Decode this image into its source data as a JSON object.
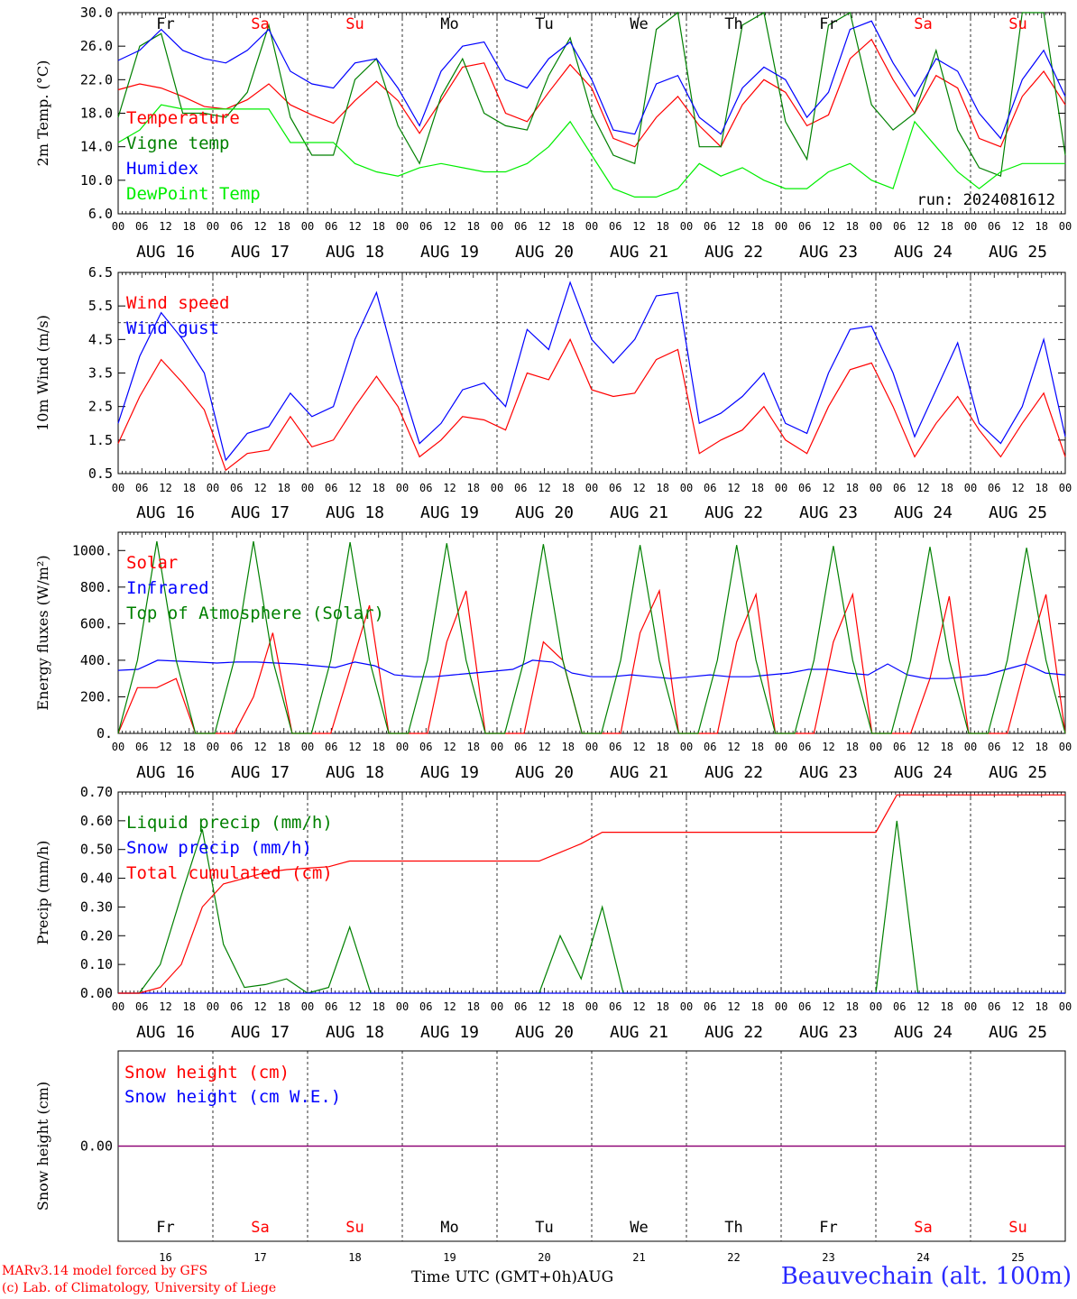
{
  "colors": {
    "temperature": "#ff0000",
    "vigne": "#008000",
    "humidex": "#0000ff",
    "dewpoint": "#00ee00",
    "axis": "#000000",
    "red": "#ff0000",
    "green": "#008000",
    "blue": "#0000ff",
    "purple": "#800080"
  },
  "days": {
    "weekday_labels": [
      "Fr",
      "Sa",
      "Su",
      "Mo",
      "Tu",
      "We",
      "Th",
      "Fr",
      "Sa",
      "Su"
    ],
    "weekend_flags": [
      false,
      true,
      true,
      false,
      false,
      false,
      false,
      false,
      true,
      true
    ],
    "date_labels": [
      "AUG 16",
      "AUG 17",
      "AUG 18",
      "AUG 19",
      "AUG 20",
      "AUG 21",
      "AUG 22",
      "AUG 23",
      "AUG 24",
      "AUG 25"
    ],
    "day_numbers": [
      "16",
      "17",
      "18",
      "19",
      "20",
      "21",
      "22",
      "23",
      "24",
      "25"
    ],
    "hour_ticks": [
      "00",
      "06",
      "12",
      "18"
    ],
    "final_tick": "00"
  },
  "footer": {
    "model_line": "MARv3.14 model forced by GFS",
    "credit_line": "(c) Lab. of Climatology, University of Liege",
    "time_axis_label": "Time UTC (GMT+0h)",
    "month_label": "AUG",
    "station": "Beauvechain (alt. 100m)"
  },
  "chart_data": [
    {
      "type": "line",
      "ylabel": "2m Temp. (°C)",
      "ylim": [
        6,
        30
      ],
      "yticks": [
        "6.0",
        "10.0",
        "14.0",
        "18.0",
        "22.0",
        "26.0",
        "30.0"
      ],
      "annotation": "run: 2024081612",
      "legend": [
        "Temperature",
        "Vigne temp",
        "Humidex",
        "DewPoint Temp"
      ],
      "x_hours_step": 6,
      "series": [
        {
          "name": "Temperature",
          "color_key": "temperature",
          "values": [
            20.8,
            21.5,
            21.0,
            20.0,
            18.8,
            18.5,
            19.6,
            21.5,
            19.0,
            17.8,
            16.8,
            19.5,
            21.8,
            19.5,
            15.6,
            19.5,
            23.5,
            24.0,
            18.0,
            17.0,
            20.5,
            23.8,
            21.0,
            15.0,
            14.0,
            17.5,
            20.0,
            16.5,
            14.0,
            19.0,
            22.0,
            20.5,
            16.5,
            17.8,
            24.5,
            26.8,
            22.0,
            18.0,
            22.5,
            21.0,
            15.0,
            14.0,
            20.0,
            23.0,
            19.0
          ]
        },
        {
          "name": "Vigne temp",
          "color_key": "vigne",
          "values": [
            17.5,
            26.0,
            27.5,
            18.0,
            18.0,
            17.5,
            20.5,
            28.5,
            17.5,
            13.0,
            13.0,
            22.0,
            24.5,
            16.5,
            12.0,
            20.0,
            24.5,
            18.0,
            16.5,
            16.0,
            22.5,
            27.0,
            18.0,
            13.0,
            12.0,
            28.0,
            30.0,
            14.0,
            14.0,
            28.5,
            30.0,
            17.0,
            12.5,
            28.5,
            30.0,
            19.0,
            16.0,
            18.0,
            25.5,
            16.0,
            11.5,
            10.5,
            30.0,
            30.0,
            13.0
          ]
        },
        {
          "name": "Humidex",
          "color_key": "humidex",
          "values": [
            24.3,
            25.5,
            28.0,
            25.5,
            24.5,
            24.0,
            25.5,
            28.0,
            23.0,
            21.5,
            21.0,
            24.0,
            24.5,
            21.0,
            16.5,
            23.0,
            26.0,
            26.5,
            22.0,
            21.0,
            24.5,
            26.5,
            22.0,
            16.0,
            15.5,
            21.5,
            22.5,
            17.5,
            15.5,
            21.0,
            23.5,
            22.0,
            17.5,
            20.5,
            28.0,
            29.0,
            24.0,
            20.0,
            24.5,
            23.0,
            18.0,
            15.0,
            22.0,
            25.5,
            20.0
          ]
        },
        {
          "name": "DewPoint Temp",
          "color_key": "dewpoint",
          "values": [
            14.5,
            16.0,
            19.0,
            18.5,
            18.5,
            18.5,
            18.5,
            18.5,
            14.5,
            14.5,
            14.5,
            12.0,
            11.0,
            10.5,
            11.5,
            12.0,
            11.5,
            11.0,
            11.0,
            12.0,
            14.0,
            17.0,
            13.0,
            9.0,
            8.0,
            8.0,
            9.0,
            12.0,
            10.5,
            11.5,
            10.0,
            9.0,
            9.0,
            11.0,
            12.0,
            10.0,
            9.0,
            17.0,
            14.0,
            11.0,
            9.0,
            11.0,
            12.0,
            12.0,
            12.0
          ]
        }
      ]
    },
    {
      "type": "line",
      "ylabel": "10m Wind (m/s)",
      "ylim": [
        0.5,
        6.5
      ],
      "yticks": [
        "0.5",
        "1.5",
        "2.5",
        "3.5",
        "4.5",
        "5.5",
        "6.5"
      ],
      "reference_line": 5.0,
      "legend": [
        "Wind speed",
        "Wind gust"
      ],
      "x_hours_step": 6,
      "series": [
        {
          "name": "Wind speed",
          "color_key": "red",
          "values": [
            1.4,
            2.8,
            3.9,
            3.2,
            2.4,
            0.6,
            1.1,
            1.2,
            2.2,
            1.3,
            1.5,
            2.5,
            3.4,
            2.5,
            1.0,
            1.5,
            2.2,
            2.1,
            1.8,
            3.5,
            3.3,
            4.5,
            3.0,
            2.8,
            2.9,
            3.9,
            4.2,
            1.1,
            1.5,
            1.8,
            2.5,
            1.5,
            1.1,
            2.5,
            3.6,
            3.8,
            2.5,
            1.0,
            2.0,
            2.8,
            1.8,
            1.0,
            2.0,
            2.9,
            1.0
          ]
        },
        {
          "name": "Wind gust",
          "color_key": "blue",
          "values": [
            2.0,
            4.0,
            5.3,
            4.5,
            3.5,
            0.9,
            1.7,
            1.9,
            2.9,
            2.2,
            2.5,
            4.5,
            5.9,
            3.5,
            1.4,
            2.0,
            3.0,
            3.2,
            2.5,
            4.8,
            4.2,
            6.2,
            4.5,
            3.8,
            4.5,
            5.8,
            5.9,
            2.0,
            2.3,
            2.8,
            3.5,
            2.0,
            1.7,
            3.5,
            4.8,
            4.9,
            3.5,
            1.6,
            3.0,
            4.4,
            2.0,
            1.4,
            2.5,
            4.5,
            1.6
          ]
        }
      ]
    },
    {
      "type": "line",
      "ylabel": "Energy fluxes (W/m²)",
      "ylim": [
        0,
        1100
      ],
      "yticks": [
        "0.",
        "200.",
        "400.",
        "600.",
        "800.",
        "1000."
      ],
      "legend": [
        "Solar",
        "Infrared",
        "Top of Atmosphere (Solar)"
      ],
      "x_hours_step": 6,
      "series": [
        {
          "name": "Solar",
          "color_key": "red",
          "values": [
            0,
            250,
            250,
            300,
            0,
            0,
            0,
            200,
            550,
            0,
            0,
            0,
            350,
            700,
            0,
            0,
            0,
            500,
            780,
            0,
            0,
            0,
            500,
            400,
            0,
            0,
            0,
            550,
            780,
            0,
            0,
            0,
            500,
            760,
            0,
            0,
            0,
            500,
            760,
            0,
            0,
            0,
            300,
            750,
            0,
            0,
            0,
            400,
            760,
            0
          ]
        },
        {
          "name": "Infrared",
          "color_key": "blue",
          "values": [
            345,
            350,
            400,
            395,
            390,
            385,
            390,
            390,
            385,
            380,
            370,
            360,
            390,
            370,
            320,
            310,
            310,
            320,
            330,
            340,
            350,
            400,
            390,
            330,
            310,
            310,
            320,
            310,
            300,
            310,
            320,
            310,
            310,
            320,
            330,
            350,
            350,
            330,
            320,
            380,
            320,
            300,
            300,
            310,
            320,
            350,
            380,
            330,
            320
          ]
        },
        {
          "name": "Top of Atmosphere (Solar)",
          "color_key": "green",
          "values": [
            0,
            400,
            1050,
            400,
            0,
            0,
            400,
            1050,
            400,
            0,
            0,
            400,
            1045,
            400,
            0,
            0,
            400,
            1040,
            400,
            0,
            0,
            400,
            1035,
            400,
            0,
            0,
            400,
            1030,
            400,
            0,
            0,
            400,
            1030,
            400,
            0,
            0,
            400,
            1025,
            400,
            0,
            0,
            400,
            1020,
            400,
            0,
            0,
            400,
            1015,
            400,
            0
          ]
        }
      ]
    },
    {
      "type": "line",
      "ylabel": "Precip (mm/h)",
      "ylim": [
        0,
        0.7
      ],
      "yticks": [
        "0.00",
        "0.10",
        "0.20",
        "0.30",
        "0.40",
        "0.50",
        "0.60",
        "0.70"
      ],
      "legend": [
        "Liquid precip (mm/h)",
        "Snow precip (mm/h)",
        "Total cumulated (cm)"
      ],
      "x_hours_step": 6,
      "series": [
        {
          "name": "Liquid precip (mm/h)",
          "color_key": "green",
          "values": [
            0,
            0,
            0.1,
            0.34,
            0.57,
            0.17,
            0.02,
            0.03,
            0.05,
            0,
            0.02,
            0.23,
            0,
            0,
            0,
            0,
            0,
            0,
            0,
            0,
            0,
            0.2,
            0.05,
            0.3,
            0,
            0,
            0,
            0,
            0,
            0,
            0,
            0,
            0,
            0,
            0,
            0,
            0,
            0.6,
            0,
            0,
            0,
            0,
            0,
            0,
            0,
            0
          ]
        },
        {
          "name": "Snow precip (mm/h)",
          "color_key": "blue",
          "values": [
            0,
            0,
            0,
            0,
            0,
            0,
            0,
            0,
            0,
            0,
            0,
            0,
            0,
            0,
            0,
            0,
            0,
            0,
            0,
            0,
            0,
            0,
            0,
            0,
            0,
            0,
            0,
            0,
            0,
            0,
            0,
            0,
            0,
            0,
            0,
            0,
            0,
            0,
            0,
            0,
            0,
            0,
            0,
            0,
            0,
            0
          ]
        },
        {
          "name": "Total cumulated (cm)",
          "color_key": "red",
          "values": [
            0,
            0,
            0.02,
            0.1,
            0.3,
            0.38,
            0.4,
            0.42,
            0.43,
            0.435,
            0.44,
            0.46,
            0.46,
            0.46,
            0.46,
            0.46,
            0.46,
            0.46,
            0.46,
            0.46,
            0.46,
            0.49,
            0.52,
            0.56,
            0.56,
            0.56,
            0.56,
            0.56,
            0.56,
            0.56,
            0.56,
            0.56,
            0.56,
            0.56,
            0.56,
            0.56,
            0.56,
            0.69,
            0.69,
            0.69,
            0.69,
            0.69,
            0.69,
            0.69,
            0.69,
            0.69
          ]
        }
      ]
    },
    {
      "type": "line",
      "ylabel": "Snow height (cm)",
      "ylim": [
        -1,
        1
      ],
      "yticks": [
        "0.00"
      ],
      "legend": [
        "Snow height (cm)",
        "Snow height (cm W.E.)"
      ],
      "series": [
        {
          "name": "Snow height (cm)",
          "color_key": "red",
          "values": [
            0,
            0
          ]
        },
        {
          "name": "Snow height (cm W.E.)",
          "color_key": "blue",
          "values": [
            0,
            0
          ]
        }
      ]
    }
  ]
}
